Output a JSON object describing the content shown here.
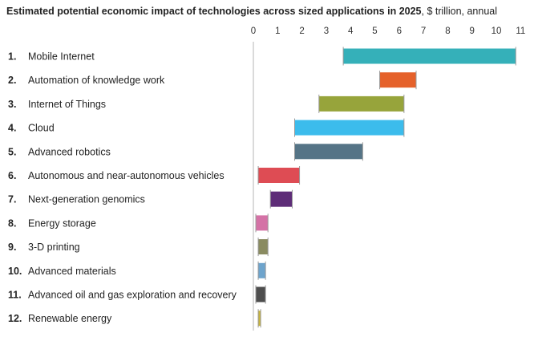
{
  "chart_data": {
    "type": "bar",
    "orientation": "horizontal",
    "subtype": "range",
    "title": "Estimated potential economic impact of technologies across sized applications in 2025",
    "subtitle": ", $ trillion, annual",
    "xlabel": "",
    "ylabel": "",
    "xlim": [
      0,
      11
    ],
    "xticks": [
      "0",
      "1",
      "2",
      "3",
      "4",
      "5",
      "6",
      "7",
      "8",
      "9",
      "10",
      "11"
    ],
    "categories": [
      {
        "rank": "1.",
        "name": "Mobile Internet",
        "low": 3.7,
        "high": 10.8,
        "color": "#35b0b9"
      },
      {
        "rank": "2.",
        "name": "Automation of knowledge work",
        "low": 5.2,
        "high": 6.7,
        "color": "#e5612a"
      },
      {
        "rank": "3.",
        "name": "Internet of Things",
        "low": 2.7,
        "high": 6.2,
        "color": "#97a43b"
      },
      {
        "rank": "4.",
        "name": "Cloud",
        "low": 1.7,
        "high": 6.2,
        "color": "#3cbcec"
      },
      {
        "rank": "5.",
        "name": "Advanced robotics",
        "low": 1.7,
        "high": 4.5,
        "color": "#557486"
      },
      {
        "rank": "6.",
        "name": "Autonomous and near-autonomous vehicles",
        "low": 0.2,
        "high": 1.9,
        "color": "#de4c54"
      },
      {
        "rank": "7.",
        "name": "Next-generation genomics",
        "low": 0.7,
        "high": 1.6,
        "color": "#5e2d78"
      },
      {
        "rank": "8.",
        "name": "Energy storage",
        "low": 0.1,
        "high": 0.6,
        "color": "#d472a6"
      },
      {
        "rank": "9.",
        "name": "3-D printing",
        "low": 0.2,
        "high": 0.6,
        "color": "#8a8b61"
      },
      {
        "rank": "10.",
        "name": "Advanced materials",
        "low": 0.2,
        "high": 0.5,
        "color": "#6ea4cc"
      },
      {
        "rank": "11.",
        "name": "Advanced oil and gas exploration and recovery",
        "low": 0.1,
        "high": 0.5,
        "color": "#4d4d4d"
      },
      {
        "rank": "12.",
        "name": "Renewable energy",
        "low": 0.2,
        "high": 0.3,
        "color": "#c8b43b"
      }
    ],
    "grid": false,
    "legend": "none"
  }
}
